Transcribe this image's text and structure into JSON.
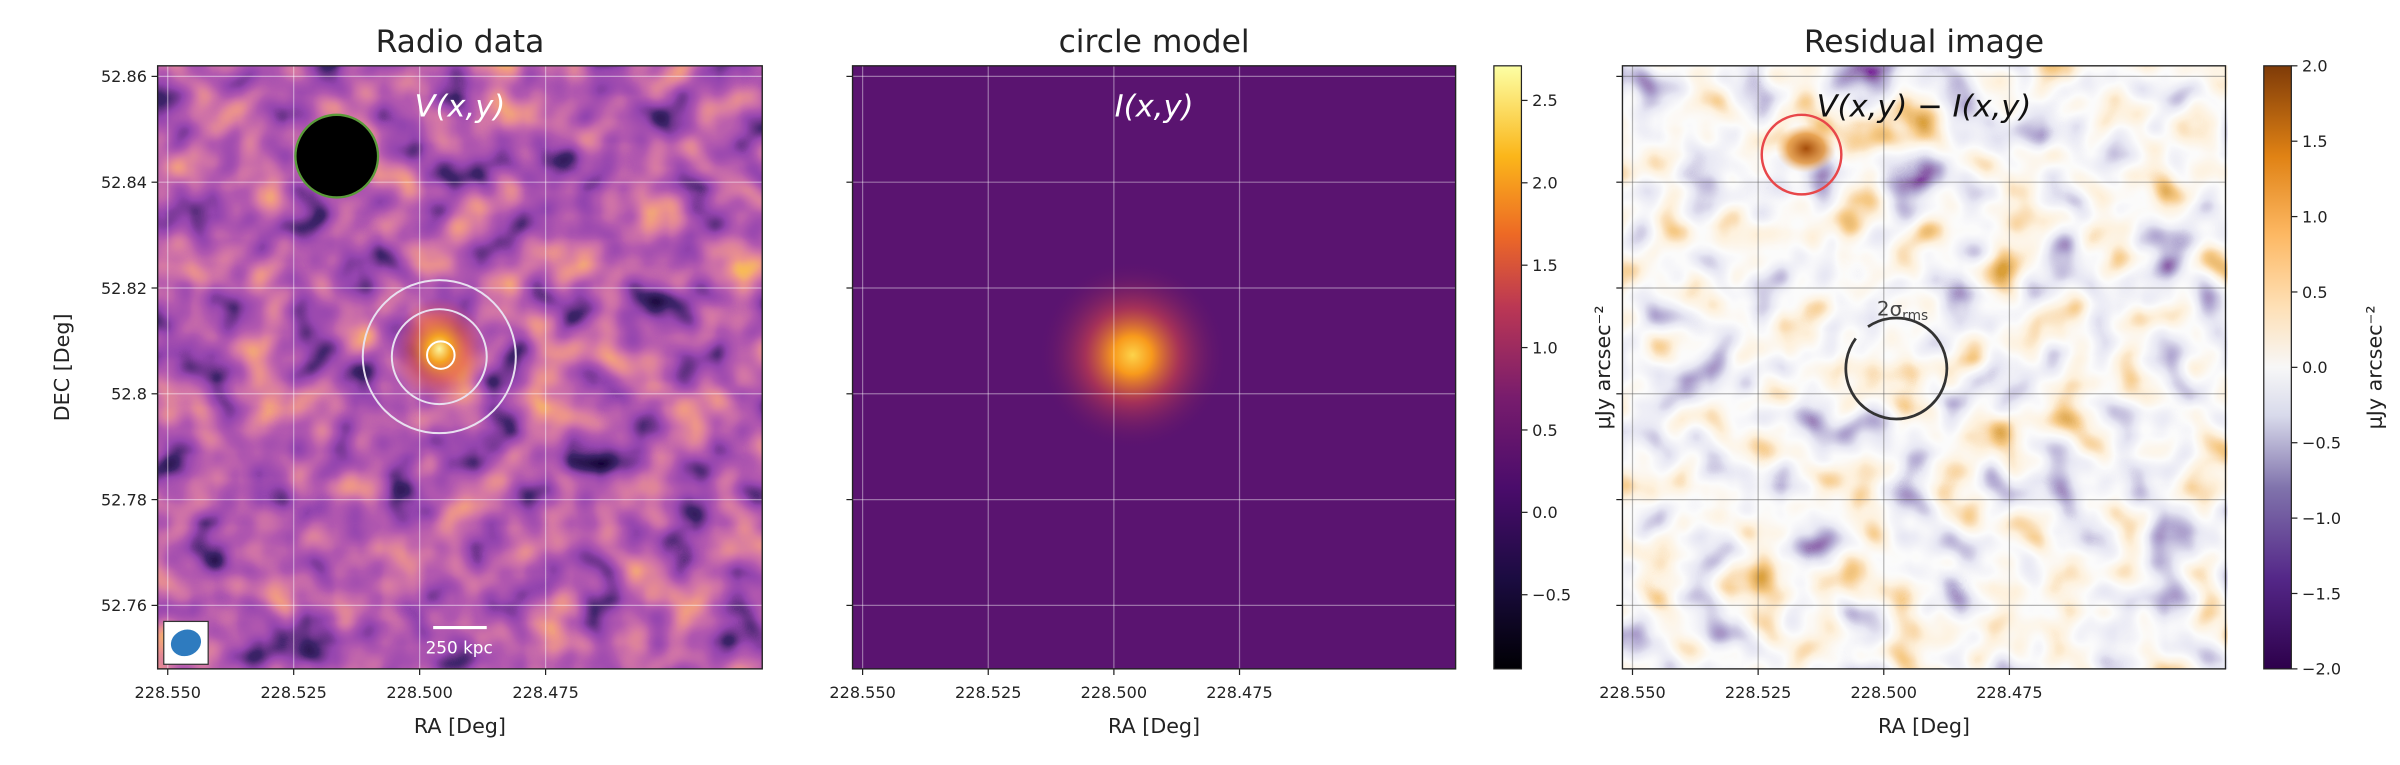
{
  "chart_data": [
    {
      "type": "image",
      "title": "Radio data",
      "annotation": "V(x,y)",
      "xlabel": "RA [Deg]",
      "ylabel": "DEC [Deg]",
      "xlim": [
        228.552,
        228.432
      ],
      "xticks": [
        {
          "value": 228.55,
          "label": "228.550"
        },
        {
          "value": 228.525,
          "label": "228.525"
        },
        {
          "value": 228.5,
          "label": "228.500"
        },
        {
          "value": 228.475,
          "label": "228.475"
        }
      ],
      "ylim": [
        52.748,
        52.862
      ],
      "yticks": [
        52.76,
        52.78,
        52.8,
        52.82,
        52.84,
        52.86
      ],
      "grid": true,
      "colormap": "inferno",
      "scalebar_label": "250 kpc"
    },
    {
      "type": "image",
      "title": "circle model",
      "annotation": "I(x,y)",
      "xlabel": "RA [Deg]",
      "xlim": [
        228.552,
        228.432
      ],
      "xticks": [
        {
          "value": 228.55,
          "label": "228.550"
        },
        {
          "value": 228.525,
          "label": "228.525"
        },
        {
          "value": 228.5,
          "label": "228.500"
        },
        {
          "value": 228.475,
          "label": "228.475"
        }
      ],
      "ylim": [
        52.748,
        52.862
      ],
      "yticks": [
        52.76,
        52.78,
        52.8,
        52.82,
        52.84,
        52.86
      ],
      "yticklabels": false,
      "grid": true,
      "colormap": "inferno",
      "colorbar": {
        "clim": [
          -0.95,
          2.71
        ],
        "colormap": "inferno",
        "label": "μJy arcsec⁻²",
        "ticks": [
          {
            "value": -0.5,
            "label": "−0.5"
          },
          {
            "value": 0,
            "label": "0.0"
          },
          {
            "value": 0.5,
            "label": "0.5"
          },
          {
            "value": 1,
            "label": "1.0"
          },
          {
            "value": 1.5,
            "label": "1.5"
          },
          {
            "value": 2,
            "label": "2.0"
          },
          {
            "value": 2.5,
            "label": "2.5"
          }
        ]
      }
    },
    {
      "type": "image",
      "title": "Residual image",
      "annotation": "V(x,y) − I(x,y)",
      "xlabel": "RA [Deg]",
      "xlim": [
        228.552,
        228.432
      ],
      "xticks": [
        {
          "value": 228.55,
          "label": "228.550"
        },
        {
          "value": 228.525,
          "label": "228.525"
        },
        {
          "value": 228.5,
          "label": "228.500"
        },
        {
          "value": 228.475,
          "label": "228.475"
        }
      ],
      "ylim": [
        52.748,
        52.862
      ],
      "yticks": [
        52.76,
        52.78,
        52.8,
        52.82,
        52.84,
        52.86
      ],
      "yticklabels": false,
      "grid": true,
      "colormap": "puor",
      "contour_label": "2σ",
      "contour_label_sub": "rms",
      "colorbar": {
        "clim": [
          -2,
          2
        ],
        "colormap": "puor",
        "label": "μJy arcsec⁻²",
        "ticks": [
          {
            "value": -2,
            "label": "−2.0"
          },
          {
            "value": -1.5,
            "label": "−1.5"
          },
          {
            "value": -1,
            "label": "−1.0"
          },
          {
            "value": -0.5,
            "label": "−0.5"
          },
          {
            "value": 0,
            "label": "0.0"
          },
          {
            "value": 0.5,
            "label": "0.5"
          },
          {
            "value": 1,
            "label": "1.0"
          },
          {
            "value": 1.5,
            "label": "1.5"
          },
          {
            "value": 2,
            "label": "2.0"
          }
        ]
      }
    }
  ]
}
